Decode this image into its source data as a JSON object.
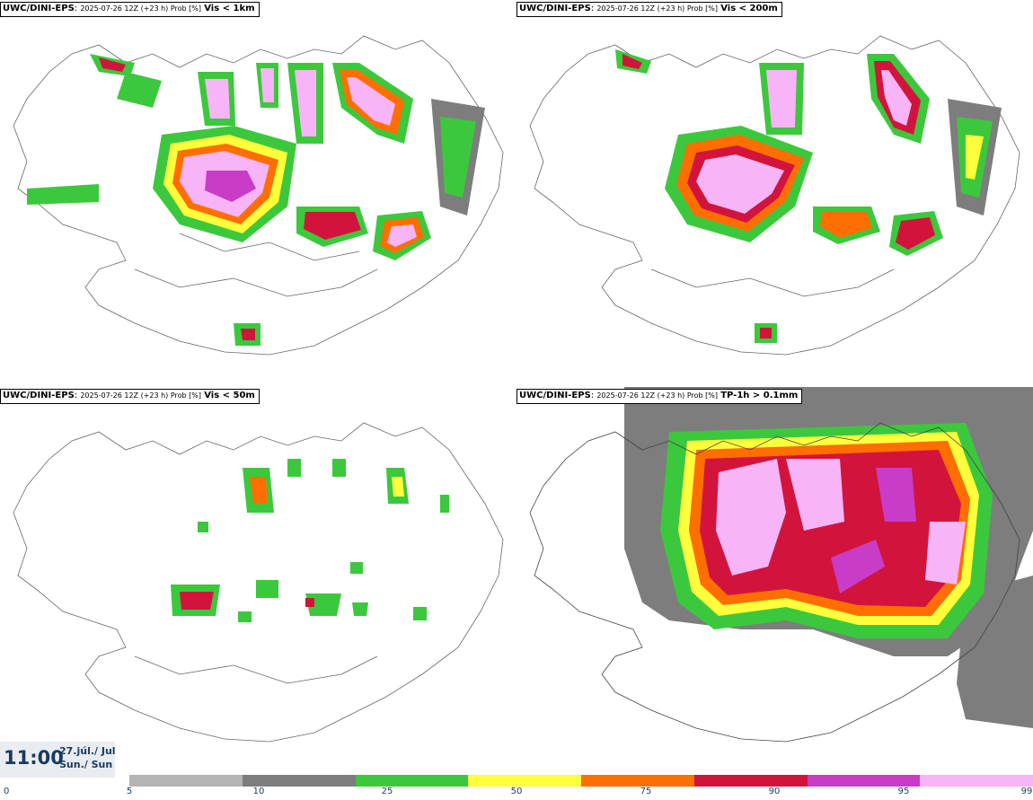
{
  "panels": [
    {
      "model": "UWC/DINI-EPS",
      "meta": "2025-07-26 12Z (+23 h) Prob [%]",
      "param": "Vis < 1km"
    },
    {
      "model": "UWC/DINI-EPS",
      "meta": "2025-07-26 12Z (+23 h) Prob [%]",
      "param": "Vis < 200m"
    },
    {
      "model": "UWC/DINI-EPS",
      "meta": "2025-07-26 12Z (+23 h) Prob [%]",
      "param": "Vis < 50m"
    },
    {
      "model": "UWC/DINI-EPS",
      "meta": "2025-07-26 12Z (+23 h) Prob [%]",
      "param": "TP-1h > 0.1mm"
    }
  ],
  "valid_time": {
    "time": "11:00",
    "date_line1": "27.júl./ Jul",
    "date_line2": "Sun./ Sun"
  },
  "colorbar": {
    "ticks": [
      "0",
      "5",
      "10",
      "25",
      "50",
      "75",
      "90",
      "95",
      "99"
    ],
    "colors": [
      "#b4b4b4",
      "#7d7d7d",
      "#3cc83c",
      "#ffff3c",
      "#ff6e00",
      "#d2143c",
      "#c83cc8",
      "#f7b4f7"
    ]
  }
}
